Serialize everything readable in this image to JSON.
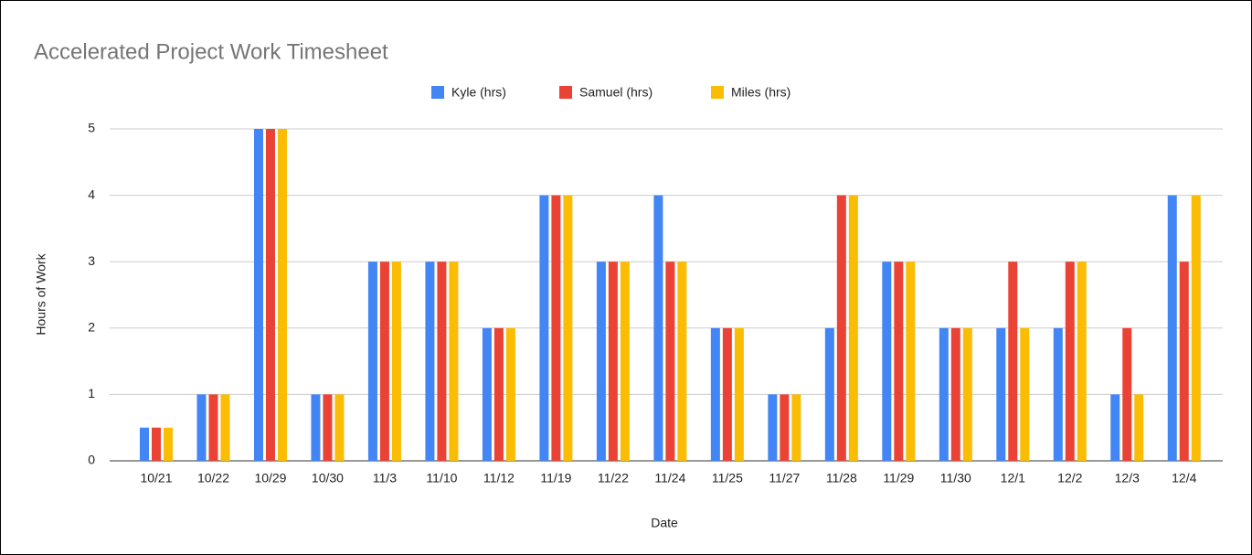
{
  "chart_data": {
    "type": "bar",
    "title": "Accelerated Project Work Timesheet",
    "x_label": "Date",
    "y_label": "Hours of Work",
    "categories": [
      "10/21",
      "10/22",
      "10/29",
      "10/30",
      "11/3",
      "11/10",
      "11/12",
      "11/19",
      "11/22",
      "11/24",
      "11/25",
      "11/27",
      "11/28",
      "11/29",
      "11/30",
      "12/1",
      "12/2",
      "12/3",
      "12/4"
    ],
    "series": [
      {
        "name": "Kyle (hrs)",
        "color": "#4285f4",
        "values": [
          0.5,
          1,
          5,
          1,
          3,
          3,
          2,
          4,
          3,
          4,
          2,
          1,
          2,
          3,
          2,
          2,
          2,
          1,
          4
        ]
      },
      {
        "name": "Samuel (hrs)",
        "color": "#ea4335",
        "values": [
          0.5,
          1,
          5,
          1,
          3,
          3,
          2,
          4,
          3,
          3,
          2,
          1,
          4,
          3,
          2,
          3,
          3,
          2,
          3
        ]
      },
      {
        "name": "Miles (hrs)",
        "color": "#fbbc04",
        "values": [
          0.5,
          1,
          5,
          1,
          3,
          3,
          2,
          4,
          3,
          3,
          2,
          1,
          4,
          3,
          2,
          2,
          3,
          1,
          4
        ]
      }
    ],
    "ylim": [
      0,
      5
    ],
    "yticks": [
      0,
      1,
      2,
      3,
      4,
      5
    ],
    "grid": true,
    "legend": "top"
  }
}
